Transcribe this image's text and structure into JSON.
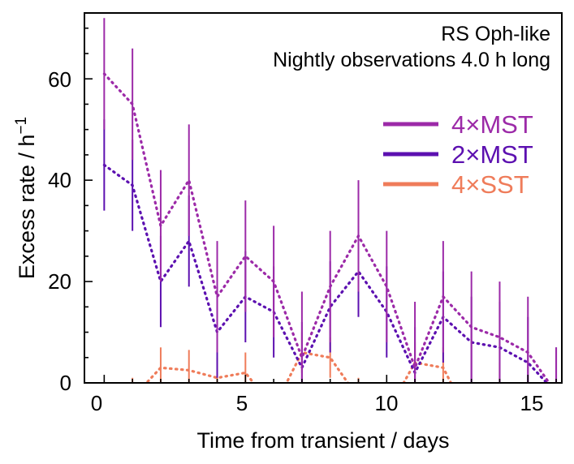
{
  "chart_data": {
    "type": "line",
    "title": "",
    "annotations": [
      "RS Oph-like",
      "Nightly observations 4.0 h long"
    ],
    "xlabel": "Time from transient / days",
    "ylabel": "Excess rate / h",
    "ylabel_superscript": "−1",
    "xlim": [
      -0.7,
      16.2
    ],
    "ylim": [
      0,
      73
    ],
    "xticks": [
      0,
      5,
      10,
      15
    ],
    "xtick_labels": [
      "0",
      "5",
      "10",
      "15"
    ],
    "yticks": [
      0,
      20,
      40,
      60
    ],
    "ytick_labels": [
      "0",
      "20",
      "40",
      "60"
    ],
    "legend_position": "upper-right",
    "line_style": "dotted",
    "error_bars": true,
    "x": [
      0,
      1,
      2,
      3,
      4,
      5,
      6,
      7,
      8,
      9,
      10,
      11,
      12,
      13,
      14,
      15,
      16
    ],
    "series": [
      {
        "name": "4×MST",
        "color": "#9c2aa8",
        "values": [
          61,
          55,
          31,
          40,
          17,
          25,
          20,
          5,
          19,
          29,
          19,
          3,
          17,
          11,
          9,
          6,
          -2
        ],
        "errors": [
          11,
          11,
          11,
          11,
          11,
          11,
          11,
          13,
          11,
          11,
          11,
          13,
          11,
          11,
          11,
          11,
          9
        ]
      },
      {
        "name": "2×MST",
        "color": "#5c10b0",
        "values": [
          43,
          39,
          20,
          28,
          10,
          17,
          14,
          3,
          15,
          22,
          14,
          2,
          13,
          8,
          7,
          4,
          -2
        ],
        "errors": [
          9,
          9,
          9,
          9,
          9,
          9,
          9,
          9,
          9,
          9,
          9,
          9,
          9,
          9,
          9,
          9,
          9
        ]
      },
      {
        "name": "4×SST",
        "color": "#ef7c5a",
        "values": [
          -4,
          -3,
          3,
          2.5,
          1,
          2,
          -5,
          6,
          5,
          -3,
          -6,
          4,
          3,
          -8,
          0,
          -4,
          -6
        ],
        "errors": [
          4,
          4,
          4,
          4,
          4,
          4,
          4,
          4,
          4,
          4,
          4,
          4,
          4,
          4,
          4,
          4,
          4
        ]
      }
    ]
  }
}
